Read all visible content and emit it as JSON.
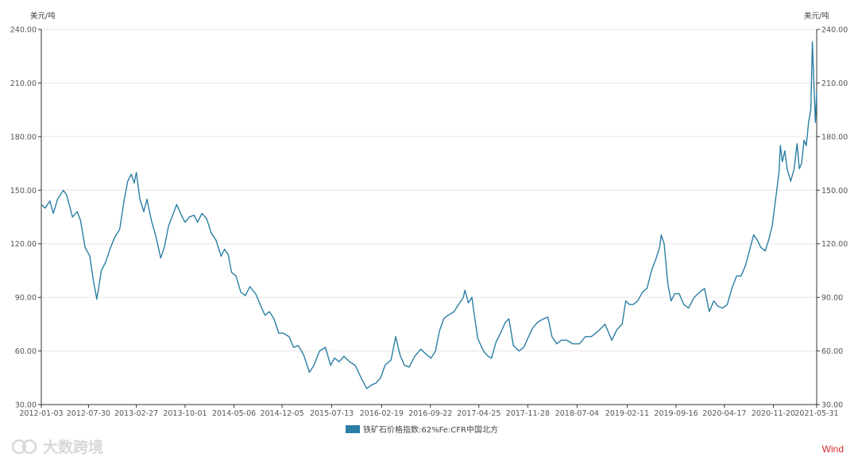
{
  "chart_data": {
    "type": "line",
    "title": "",
    "y_unit_left": "美元/吨",
    "y_unit_right": "美元/吨",
    "ylim": [
      30,
      240
    ],
    "y_ticks": [
      "30.00",
      "60.00",
      "90.00",
      "120.00",
      "150.00",
      "180.00",
      "210.00",
      "240.00"
    ],
    "x_range": [
      "2012-01-03",
      "2021-05-31"
    ],
    "x_ticks": [
      "2012-01-03",
      "2012-07-30",
      "2013-02-27",
      "2013-10-01",
      "2014-05-06",
      "2014-12-05",
      "2015-07-13",
      "2016-02-19",
      "2016-09-22",
      "2017-04-25",
      "2017-11-28",
      "2018-07-04",
      "2019-02-11",
      "2019-09-16",
      "2020-04-17",
      "2020-11-20",
      "2021-05-31"
    ],
    "grid": "horizontal",
    "legend_position": "bottom",
    "colors": {
      "line": "#2a7ea3",
      "grid": "#e6e6e6",
      "axis": "#333333"
    },
    "series": [
      {
        "name": "铁矿石价格指数:62%Fe:CFR中国北方",
        "points": [
          [
            "2012-01-03",
            142
          ],
          [
            "2012-01-20",
            140
          ],
          [
            "2012-02-10",
            144
          ],
          [
            "2012-02-25",
            137
          ],
          [
            "2012-03-15",
            145
          ],
          [
            "2012-04-10",
            150
          ],
          [
            "2012-04-25",
            147
          ],
          [
            "2012-05-20",
            135
          ],
          [
            "2012-06-10",
            138
          ],
          [
            "2012-06-25",
            133
          ],
          [
            "2012-07-15",
            118
          ],
          [
            "2012-08-05",
            113
          ],
          [
            "2012-08-20",
            100
          ],
          [
            "2012-09-05",
            89
          ],
          [
            "2012-09-25",
            105
          ],
          [
            "2012-10-15",
            110
          ],
          [
            "2012-11-05",
            118
          ],
          [
            "2012-11-25",
            124
          ],
          [
            "2012-12-15",
            128
          ],
          [
            "2013-01-05",
            145
          ],
          [
            "2013-01-20",
            155
          ],
          [
            "2013-02-05",
            159
          ],
          [
            "2013-02-18",
            154
          ],
          [
            "2013-02-27",
            160
          ],
          [
            "2013-03-15",
            145
          ],
          [
            "2013-04-01",
            138
          ],
          [
            "2013-04-15",
            145
          ],
          [
            "2013-05-05",
            133
          ],
          [
            "2013-05-25",
            124
          ],
          [
            "2013-06-15",
            112
          ],
          [
            "2013-07-01",
            118
          ],
          [
            "2013-07-20",
            130
          ],
          [
            "2013-08-10",
            137
          ],
          [
            "2013-08-25",
            142
          ],
          [
            "2013-09-15",
            136
          ],
          [
            "2013-10-01",
            132
          ],
          [
            "2013-10-20",
            135
          ],
          [
            "2013-11-10",
            136
          ],
          [
            "2013-11-25",
            132
          ],
          [
            "2013-12-15",
            137
          ],
          [
            "2014-01-05",
            134
          ],
          [
            "2014-01-25",
            126
          ],
          [
            "2014-02-15",
            122
          ],
          [
            "2014-03-10",
            113
          ],
          [
            "2014-03-25",
            117
          ],
          [
            "2014-04-10",
            114
          ],
          [
            "2014-04-25",
            104
          ],
          [
            "2014-05-15",
            102
          ],
          [
            "2014-06-05",
            93
          ],
          [
            "2014-06-25",
            91
          ],
          [
            "2014-07-15",
            96
          ],
          [
            "2014-08-10",
            92
          ],
          [
            "2014-08-30",
            86
          ],
          [
            "2014-09-20",
            80
          ],
          [
            "2014-10-10",
            82
          ],
          [
            "2014-10-30",
            78
          ],
          [
            "2014-11-20",
            70
          ],
          [
            "2014-12-10",
            70
          ],
          [
            "2015-01-05",
            68
          ],
          [
            "2015-01-25",
            62
          ],
          [
            "2015-02-15",
            63
          ],
          [
            "2015-03-10",
            58
          ],
          [
            "2015-04-05",
            48
          ],
          [
            "2015-04-25",
            52
          ],
          [
            "2015-05-20",
            60
          ],
          [
            "2015-06-15",
            62
          ],
          [
            "2015-07-08",
            52
          ],
          [
            "2015-07-25",
            56
          ],
          [
            "2015-08-15",
            54
          ],
          [
            "2015-09-05",
            57
          ],
          [
            "2015-09-30",
            54
          ],
          [
            "2015-10-25",
            52
          ],
          [
            "2015-11-20",
            45
          ],
          [
            "2015-12-15",
            39
          ],
          [
            "2016-01-05",
            41
          ],
          [
            "2016-01-25",
            42
          ],
          [
            "2016-02-15",
            45
          ],
          [
            "2016-03-05",
            52
          ],
          [
            "2016-04-01",
            55
          ],
          [
            "2016-04-21",
            68
          ],
          [
            "2016-05-10",
            58
          ],
          [
            "2016-05-30",
            52
          ],
          [
            "2016-06-20",
            51
          ],
          [
            "2016-07-15",
            57
          ],
          [
            "2016-08-10",
            61
          ],
          [
            "2016-09-05",
            58
          ],
          [
            "2016-09-25",
            56
          ],
          [
            "2016-10-15",
            60
          ],
          [
            "2016-11-01",
            71
          ],
          [
            "2016-11-20",
            78
          ],
          [
            "2016-12-10",
            80
          ],
          [
            "2017-01-05",
            82
          ],
          [
            "2017-01-25",
            86
          ],
          [
            "2017-02-15",
            90
          ],
          [
            "2017-02-22",
            94
          ],
          [
            "2017-03-10",
            87
          ],
          [
            "2017-03-25",
            90
          ],
          [
            "2017-04-05",
            80
          ],
          [
            "2017-04-20",
            67
          ],
          [
            "2017-05-15",
            60
          ],
          [
            "2017-06-05",
            57
          ],
          [
            "2017-06-20",
            56
          ],
          [
            "2017-07-10",
            65
          ],
          [
            "2017-07-30",
            70
          ],
          [
            "2017-08-20",
            76
          ],
          [
            "2017-09-05",
            78
          ],
          [
            "2017-09-25",
            63
          ],
          [
            "2017-10-20",
            60
          ],
          [
            "2017-11-10",
            62
          ],
          [
            "2017-12-01",
            68
          ],
          [
            "2017-12-20",
            73
          ],
          [
            "2018-01-10",
            76
          ],
          [
            "2018-02-05",
            78
          ],
          [
            "2018-02-25",
            79
          ],
          [
            "2018-03-15",
            68
          ],
          [
            "2018-04-05",
            64
          ],
          [
            "2018-04-25",
            66
          ],
          [
            "2018-05-20",
            66
          ],
          [
            "2018-06-15",
            64
          ],
          [
            "2018-07-15",
            64
          ],
          [
            "2018-08-10",
            68
          ],
          [
            "2018-09-05",
            68
          ],
          [
            "2018-10-05",
            71
          ],
          [
            "2018-11-05",
            75
          ],
          [
            "2018-12-05",
            66
          ],
          [
            "2018-12-28",
            72
          ],
          [
            "2019-01-20",
            75
          ],
          [
            "2019-02-05",
            88
          ],
          [
            "2019-02-20",
            86
          ],
          [
            "2019-03-10",
            86
          ],
          [
            "2019-03-30",
            88
          ],
          [
            "2019-04-20",
            93
          ],
          [
            "2019-05-10",
            95
          ],
          [
            "2019-05-30",
            105
          ],
          [
            "2019-06-20",
            112
          ],
          [
            "2019-07-05",
            118
          ],
          [
            "2019-07-12",
            125
          ],
          [
            "2019-07-25",
            120
          ],
          [
            "2019-08-10",
            98
          ],
          [
            "2019-08-25",
            88
          ],
          [
            "2019-09-10",
            92
          ],
          [
            "2019-09-30",
            92
          ],
          [
            "2019-10-20",
            86
          ],
          [
            "2019-11-10",
            84
          ],
          [
            "2019-12-05",
            90
          ],
          [
            "2019-12-30",
            93
          ],
          [
            "2020-01-20",
            95
          ],
          [
            "2020-02-10",
            82
          ],
          [
            "2020-03-01",
            88
          ],
          [
            "2020-03-20",
            85
          ],
          [
            "2020-04-10",
            84
          ],
          [
            "2020-04-30",
            86
          ],
          [
            "2020-05-20",
            95
          ],
          [
            "2020-06-10",
            102
          ],
          [
            "2020-06-30",
            102
          ],
          [
            "2020-07-20",
            108
          ],
          [
            "2020-08-10",
            118
          ],
          [
            "2020-08-25",
            125
          ],
          [
            "2020-09-10",
            122
          ],
          [
            "2020-09-25",
            118
          ],
          [
            "2020-10-15",
            116
          ],
          [
            "2020-10-30",
            122
          ],
          [
            "2020-11-15",
            130
          ],
          [
            "2020-11-30",
            145
          ],
          [
            "2020-12-15",
            160
          ],
          [
            "2020-12-21",
            175
          ],
          [
            "2020-12-30",
            166
          ],
          [
            "2021-01-10",
            172
          ],
          [
            "2021-01-20",
            162
          ],
          [
            "2021-02-05",
            155
          ],
          [
            "2021-02-20",
            162
          ],
          [
            "2021-03-05",
            176
          ],
          [
            "2021-03-15",
            162
          ],
          [
            "2021-03-25",
            165
          ],
          [
            "2021-04-05",
            178
          ],
          [
            "2021-04-15",
            175
          ],
          [
            "2021-04-25",
            188
          ],
          [
            "2021-05-05",
            195
          ],
          [
            "2021-05-12",
            233
          ],
          [
            "2021-05-18",
            212
          ],
          [
            "2021-05-25",
            188
          ],
          [
            "2021-05-31",
            205
          ]
        ]
      }
    ]
  },
  "legend": {
    "label": "铁矿石价格指数:62%Fe:CFR中国北方"
  },
  "source_logo": "Wind",
  "watermark_text": "大数跨境"
}
